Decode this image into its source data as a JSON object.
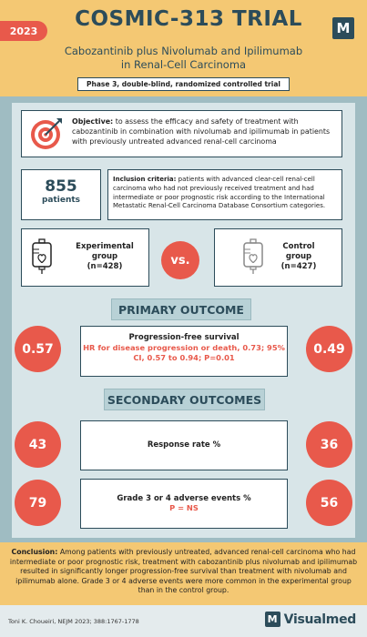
{
  "header": {
    "year": "2023",
    "title": "COSMIC-313 TRIAL",
    "logo_letter": "M",
    "subtitle_line1": "Cabozantinib plus Nivolumab and Ipilimumab",
    "subtitle_line2": "in Renal-Cell Carcinoma",
    "design": "Phase 3, double-blind, randomized controlled trial"
  },
  "objective": {
    "label": "Objective:",
    "text": "to assess the efficacy and safety of treatment with cabozantinib in combination with nivolumab and ipilimumab in patients with previously untreated advanced renal-cell carcinoma",
    "icon": "target-icon"
  },
  "patients": {
    "count": "855",
    "label": "patients"
  },
  "inclusion": {
    "label": "Inclusion criteria:",
    "text": "patients with advanced clear-cell renal-cell carcinoma who had not previously received treatment and had intermediate or poor prognostic risk according to the International Metastatic Renal-Cell Carcinoma Database Consortium categories."
  },
  "groups": {
    "experimental": {
      "line1": "Experimental",
      "line2": "group",
      "n": "(n=428)",
      "icon": "iv-bag-icon"
    },
    "vs": "vs.",
    "control": {
      "line1": "Control",
      "line2": "group",
      "n": "(n=427)",
      "icon": "iv-bag-icon"
    }
  },
  "primary": {
    "heading": "PRIMARY OUTCOME",
    "title": "Progression-free survival",
    "detail": "HR for disease progression or death, 0.73; 95% CI, 0.57 to 0.94; P=0.01",
    "experimental": "0.57",
    "control": "0.49"
  },
  "secondary": {
    "heading": "SECONDARY OUTCOMES",
    "response_title": "Response rate %",
    "response_experimental": "43",
    "response_control": "36",
    "ae_title": "Grade 3 or 4 adverse events %",
    "ae_detail": "P = NS",
    "ae_experimental": "79",
    "ae_control": "56"
  },
  "conclusion": {
    "label": "Conclusion:",
    "text": "Among patients with previously untreated, advanced renal-cell carcinoma who had intermediate or poor prognostic risk, treatment with cabozantinib plus nivolumab and ipilimumab resulted in significantly longer progression-free survival than treatment with nivolumab and ipilimumab alone. Grade 3 or 4 adverse events were more common in the experimental group than in the control group."
  },
  "footer": {
    "citation": "Toni K. Choueiri, NEJM 2023; 388:1767-1778",
    "brand_letter": "M",
    "brand_name": "Visualmed"
  },
  "colors": {
    "accent_red": "#e8594b",
    "header_yellow": "#f4c873",
    "navy": "#2c4c5a",
    "background_teal": "#9fbcc2"
  }
}
